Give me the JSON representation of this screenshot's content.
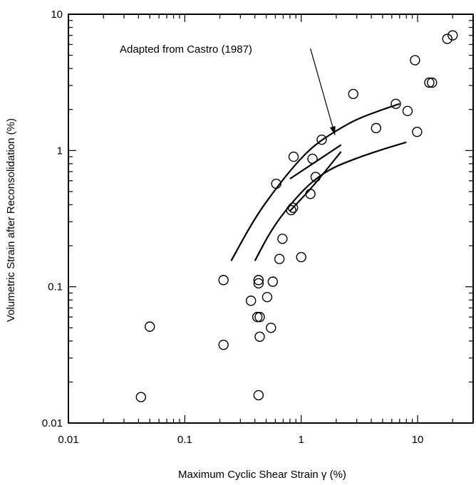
{
  "chart_data": {
    "type": "scatter",
    "title": "",
    "xlabel": "Maximum Cyclic Shear Strain γ (%)",
    "ylabel": "Volumetric Strain after Reconsolidation (%)",
    "x_scale": "log",
    "y_scale": "log",
    "xlim": [
      0.01,
      30
    ],
    "ylim": [
      0.01,
      10
    ],
    "x_ticks": [
      {
        "value": 0.01,
        "label": "0.01"
      },
      {
        "value": 0.1,
        "label": "0.1"
      },
      {
        "value": 1,
        "label": "1"
      },
      {
        "value": 10,
        "label": "10"
      }
    ],
    "y_ticks": [
      {
        "value": 0.01,
        "label": "0.01"
      },
      {
        "value": 0.1,
        "label": "0.1"
      },
      {
        "value": 1,
        "label": "1"
      },
      {
        "value": 10,
        "label": "10"
      }
    ],
    "grid": false,
    "marker": "open-circle",
    "points": [
      {
        "x": 0.042,
        "y": 0.0155
      },
      {
        "x": 0.05,
        "y": 0.051
      },
      {
        "x": 0.215,
        "y": 0.112
      },
      {
        "x": 0.215,
        "y": 0.0375
      },
      {
        "x": 0.37,
        "y": 0.079
      },
      {
        "x": 0.42,
        "y": 0.06
      },
      {
        "x": 0.43,
        "y": 0.112
      },
      {
        "x": 0.43,
        "y": 0.106
      },
      {
        "x": 0.44,
        "y": 0.06
      },
      {
        "x": 0.44,
        "y": 0.043
      },
      {
        "x": 0.43,
        "y": 0.016
      },
      {
        "x": 0.51,
        "y": 0.084
      },
      {
        "x": 0.55,
        "y": 0.05
      },
      {
        "x": 0.57,
        "y": 0.109
      },
      {
        "x": 0.61,
        "y": 0.57
      },
      {
        "x": 0.65,
        "y": 0.16
      },
      {
        "x": 0.69,
        "y": 0.225
      },
      {
        "x": 0.82,
        "y": 0.365
      },
      {
        "x": 0.85,
        "y": 0.38
      },
      {
        "x": 0.86,
        "y": 0.9
      },
      {
        "x": 1.0,
        "y": 0.165
      },
      {
        "x": 1.2,
        "y": 0.48
      },
      {
        "x": 1.25,
        "y": 0.87
      },
      {
        "x": 1.33,
        "y": 0.64
      },
      {
        "x": 1.5,
        "y": 1.2
      },
      {
        "x": 2.8,
        "y": 2.6
      },
      {
        "x": 4.4,
        "y": 1.46
      },
      {
        "x": 6.5,
        "y": 2.2
      },
      {
        "x": 8.2,
        "y": 1.95
      },
      {
        "x": 9.5,
        "y": 4.6
      },
      {
        "x": 9.9,
        "y": 1.37
      },
      {
        "x": 12.6,
        "y": 3.15
      },
      {
        "x": 13.3,
        "y": 3.15
      },
      {
        "x": 18.0,
        "y": 6.6
      },
      {
        "x": 20.0,
        "y": 7.0
      }
    ],
    "curves": [
      {
        "points": [
          [
            0.25,
            0.155
          ],
          [
            0.4,
            0.32
          ],
          [
            0.6,
            0.52
          ],
          [
            0.9,
            0.8
          ],
          [
            1.3,
            1.1
          ],
          [
            2,
            1.4
          ],
          [
            3,
            1.7
          ],
          [
            5,
            2.0
          ],
          [
            7,
            2.2
          ]
        ]
      },
      {
        "points": [
          [
            0.8,
            0.62
          ],
          [
            1.2,
            0.78
          ],
          [
            1.7,
            0.95
          ],
          [
            2.2,
            1.1
          ]
        ]
      },
      {
        "points": [
          [
            0.4,
            0.155
          ],
          [
            0.55,
            0.26
          ],
          [
            0.8,
            0.4
          ],
          [
            1.2,
            0.58
          ],
          [
            1.8,
            0.74
          ],
          [
            3,
            0.88
          ],
          [
            5,
            1.02
          ],
          [
            8,
            1.15
          ]
        ]
      },
      {
        "points": [
          [
            0.8,
            0.36
          ],
          [
            1.2,
            0.52
          ],
          [
            1.6,
            0.7
          ],
          [
            2.2,
            0.98
          ]
        ]
      }
    ],
    "annotation": {
      "text": "Adapted from Castro (1987)",
      "arrow_from": [
        1.2,
        5.6
      ],
      "arrow_to": [
        1.95,
        1.3
      ]
    }
  }
}
